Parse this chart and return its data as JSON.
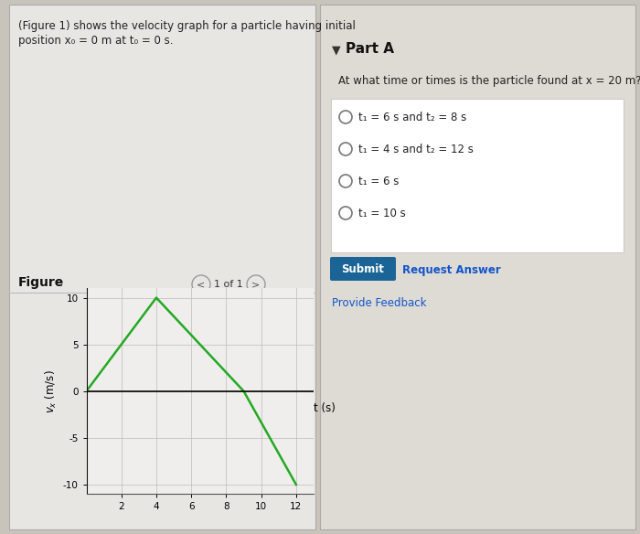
{
  "graph_t": [
    0,
    4,
    9,
    12
  ],
  "graph_v": [
    0,
    10,
    0,
    -10
  ],
  "line_color": "#22aa22",
  "line_width": 1.8,
  "xlabel": "t (s)",
  "ylabel": "v_x (m/s)",
  "xlim": [
    0,
    13
  ],
  "ylim": [
    -11,
    11
  ],
  "xticks": [
    2,
    4,
    6,
    8,
    10,
    12
  ],
  "yticks": [
    -10,
    -5,
    0,
    5,
    10
  ],
  "grid_color": "#bbbbbb",
  "description_line1": "(Figure 1) shows the velocity graph for a particle having initial",
  "description_line2": "position x₀ = 0 m at t₀ = 0 s.",
  "part_a_title": "Part A",
  "part_a_question": "At what time or times is the particle found at x = 20 m?",
  "radio_options": [
    "t₁ = 6 s and t₂ = 8 s",
    "t₁ = 4 s and t₂ = 12 s",
    "t₁ = 6 s",
    "t₁ = 10 s"
  ],
  "submit_btn_color": "#1a6496",
  "figure_label": "Figure",
  "figure_nav": "1 of 1",
  "bg_color": "#c8c4bc",
  "left_panel_bg": "#e8e6e2",
  "plot_bg": "#f0eeec",
  "right_panel_bg": "#dedad4"
}
